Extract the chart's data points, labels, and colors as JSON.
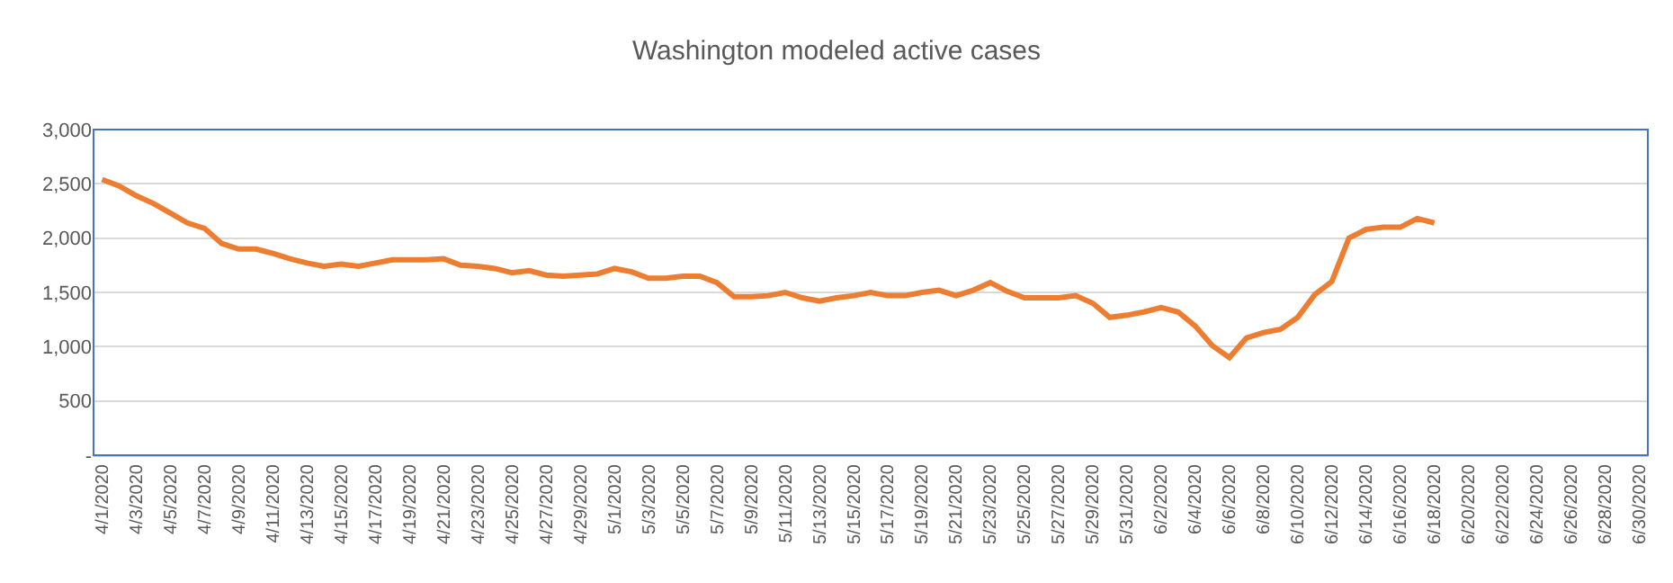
{
  "chart_data": {
    "type": "line",
    "title": "Washington modeled active cases",
    "categories": [
      "4/1/2020",
      null,
      "4/3/2020",
      null,
      "4/5/2020",
      null,
      "4/7/2020",
      null,
      "4/9/2020",
      null,
      "4/11/2020",
      null,
      "4/13/2020",
      null,
      "4/15/2020",
      null,
      "4/17/2020",
      null,
      "4/19/2020",
      null,
      "4/21/2020",
      null,
      "4/23/2020",
      null,
      "4/25/2020",
      null,
      "4/27/2020",
      null,
      "4/29/2020",
      null,
      "5/1/2020",
      null,
      "5/3/2020",
      null,
      "5/5/2020",
      null,
      "5/7/2020",
      null,
      "5/9/2020",
      null,
      "5/11/2020",
      null,
      "5/13/2020",
      null,
      "5/15/2020",
      null,
      "5/17/2020",
      null,
      "5/19/2020",
      null,
      "5/21/2020",
      null,
      "5/23/2020",
      null,
      "5/25/2020",
      null,
      "5/27/2020",
      null,
      "5/29/2020",
      null,
      "5/31/2020",
      null,
      "6/2/2020",
      null,
      "6/4/2020",
      null,
      "6/6/2020",
      null,
      "6/8/2020",
      null,
      "6/10/2020",
      null,
      "6/12/2020",
      null,
      "6/14/2020",
      null,
      "6/16/2020",
      null,
      "6/18/2020",
      null,
      "6/20/2020",
      null,
      "6/22/2020",
      null,
      "6/24/2020",
      null,
      "6/26/2020",
      null,
      "6/28/2020",
      null,
      "6/30/2020"
    ],
    "series": [
      {
        "color": "#ed7d31",
        "values": [
          2540,
          2480,
          2390,
          2320,
          2230,
          2140,
          2090,
          1950,
          1900,
          1900,
          1860,
          1810,
          1770,
          1740,
          1760,
          1740,
          1770,
          1800,
          1800,
          1800,
          1810,
          1750,
          1740,
          1720,
          1680,
          1700,
          1660,
          1650,
          1660,
          1670,
          1720,
          1690,
          1630,
          1630,
          1650,
          1650,
          1590,
          1460,
          1460,
          1470,
          1500,
          1450,
          1420,
          1450,
          1470,
          1500,
          1470,
          1470,
          1500,
          1520,
          1470,
          1520,
          1590,
          1510,
          1450,
          1450,
          1450,
          1470,
          1400,
          1270,
          1290,
          1320,
          1360,
          1320,
          1190,
          1010,
          900,
          1080,
          1130,
          1160,
          1270,
          1480,
          1600,
          2000,
          2080,
          2100,
          2100,
          2180,
          2140,
          null,
          null,
          null,
          null,
          null,
          null,
          null,
          null,
          null,
          null,
          null,
          null
        ]
      }
    ],
    "ylim": [
      0,
      3000
    ],
    "yticks": [
      {
        "value": 0,
        "label": "-"
      },
      500,
      {
        "value": 1000,
        "label": "1,000"
      },
      {
        "value": 1500,
        "label": "1,500"
      },
      {
        "value": 2000,
        "label": "2,000"
      },
      {
        "value": 2500,
        "label": "2,500"
      },
      {
        "value": 3000,
        "label": "3,000"
      }
    ],
    "grid": "y",
    "marker": "none",
    "line_style": "solid"
  }
}
